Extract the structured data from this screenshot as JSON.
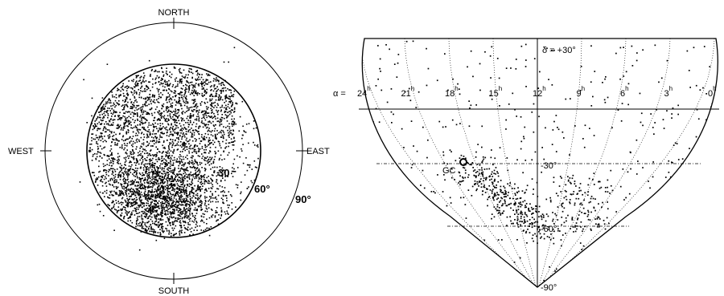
{
  "chart_data": [
    {
      "type": "scatter",
      "projection": "polar-sky",
      "title": "",
      "labels": {
        "north": "NORTH",
        "south": "SOUTH",
        "east": "EAST",
        "west": "WEST",
        "zenith_30": "30",
        "zenith_60": "60°",
        "zenith_90": "90°"
      },
      "zenith_circles_deg": [
        60,
        90
      ],
      "point_cloud": {
        "count": 4200,
        "description_bands_zenith": [
          5,
          58
        ],
        "seed": 11
      },
      "color": "#000000"
    },
    {
      "type": "scatter",
      "projection": "equatorial-hammer-like",
      "title": "",
      "labels": {
        "dec_top": "δ = +30°",
        "dec_m30": "-30°",
        "dec_m60": "-60°",
        "dec_bottom": "-90°",
        "galactic_center": "GC",
        "ra_prefix": "α = "
      },
      "ra_ticks": [
        {
          "value": 24,
          "text": "24",
          "unit": "h"
        },
        {
          "value": 21,
          "text": "21",
          "unit": "h"
        },
        {
          "value": 18,
          "text": "18",
          "unit": "h"
        },
        {
          "value": 15,
          "text": "15",
          "unit": "h"
        },
        {
          "value": 12,
          "text": "12",
          "unit": "h"
        },
        {
          "value": 9,
          "text": "9",
          "unit": "h"
        },
        {
          "value": 6,
          "text": "6",
          "unit": "h"
        },
        {
          "value": 3,
          "text": "3",
          "unit": "h"
        },
        {
          "value": 0,
          "text": "0",
          "unit": "h"
        }
      ],
      "dec_range": [
        -90,
        30
      ],
      "galactic_center": {
        "ra_h": 17.8,
        "dec": -29
      },
      "point_cloud": {
        "count": 950,
        "seed": 7
      },
      "color": "#000000"
    }
  ]
}
